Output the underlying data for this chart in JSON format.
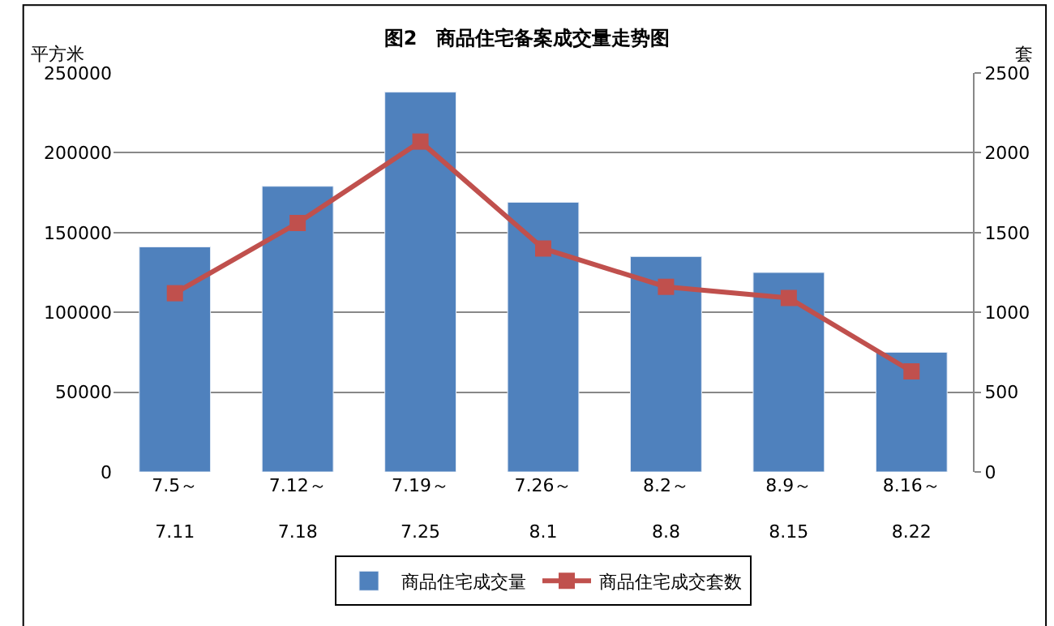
{
  "chart_data": {
    "type": "bar",
    "title": "图2　商品住宅备案成交量走势图",
    "ylabel": "平方米",
    "y2label": "套",
    "categories": [
      "7.5～\n7.11",
      "7.12～\n7.18",
      "7.19～\n7.25",
      "7.26～\n8.1",
      "8.2～\n8.8",
      "8.9～\n8.15",
      "8.16～\n8.22"
    ],
    "series": [
      {
        "name": "商品住宅成交量",
        "color": "#4f81bd",
        "values": [
          141000,
          179000,
          238000,
          169000,
          135000,
          125000,
          75000
        ]
      },
      {
        "name": "商品住宅成交套数",
        "type": "line",
        "axis": "y2",
        "color": "#c0504d",
        "marker": "square",
        "values": [
          1120,
          1560,
          2070,
          1400,
          1160,
          1090,
          630
        ]
      }
    ],
    "ylim": [
      0,
      250000
    ],
    "yticks": [
      0,
      50000,
      100000,
      150000,
      200000,
      250000
    ],
    "y2lim": [
      0,
      2500
    ],
    "y2ticks": [
      0,
      500,
      1000,
      1500,
      2000,
      2500
    ],
    "grid": "y",
    "legend": "bottom"
  }
}
